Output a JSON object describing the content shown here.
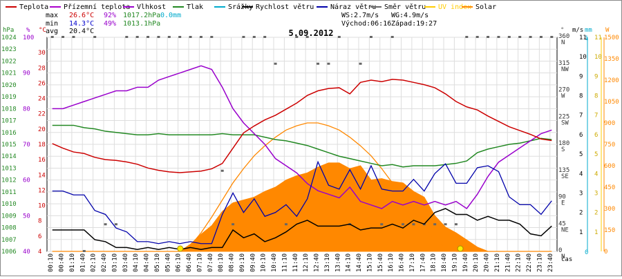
{
  "chart_data": {
    "type": "line",
    "title": "5.09.2012",
    "xlabel": "čas",
    "legend": [
      {
        "key": "teplota",
        "label": "Teplota",
        "color": "#cc0000"
      },
      {
        "key": "rosny",
        "label": "Přízemní teplota",
        "color": "#aa00cc"
      },
      {
        "key": "vlhkost",
        "label": "Vlhkost",
        "color": "#9900cc"
      },
      {
        "key": "tlak",
        "label": "Tlak",
        "color": "#228822"
      },
      {
        "key": "srazky",
        "label": "Srážky",
        "color": "#00aacc"
      },
      {
        "key": "rychlost",
        "label": "Rychlost větru",
        "color": "#000000"
      },
      {
        "key": "naraz",
        "label": "Náraz větru",
        "color": "#0000aa"
      },
      {
        "key": "smer",
        "label": "Směr větru",
        "color": "#666666"
      },
      {
        "key": "uv",
        "label": "UV index",
        "color": "#ffcc00"
      },
      {
        "key": "solar",
        "label": "Solar",
        "color": "#ff8800"
      }
    ],
    "stats": {
      "max_label": "max",
      "max_temp": "26.6°C",
      "max_hum": "92%",
      "max_press": "1017.2hPa",
      "max_rain": "0.0mm",
      "min_label": "min",
      "min_temp": "14.3°C",
      "min_hum": "49%",
      "min_press": "1013.1hPa",
      "avg_label": "avg",
      "avg_temp": "20.4°C"
    },
    "info": {
      "ws": "WS:2.7m/s",
      "wg": "WG:4.9m/s",
      "sunrise": "Východ:06:16",
      "sunset": "Západ:19:27"
    },
    "axes": {
      "hpa": {
        "unit": "hPa",
        "color": "#228822",
        "min": 1006,
        "max": 1024,
        "ticks": [
          1006,
          1007,
          1008,
          1009,
          1010,
          1011,
          1012,
          1013,
          1014,
          1015,
          1016,
          1017,
          1018,
          1019,
          1020,
          1021,
          1022,
          1023,
          1024
        ]
      },
      "pct": {
        "unit": "%",
        "color": "#9900cc",
        "min": 40,
        "max": 100,
        "ticks": [
          40,
          50,
          60,
          70,
          80,
          90,
          100
        ]
      },
      "temp": {
        "unit": "°C",
        "color": "#cc0000",
        "min": 4,
        "max": 32,
        "ticks": [
          4,
          6,
          8,
          10,
          12,
          14,
          16,
          18,
          20,
          22,
          24,
          26,
          28,
          30
        ]
      },
      "dir": {
        "unit": "°",
        "color": "#555555",
        "ticks": [
          {
            "v": 0,
            "l": "0",
            "c": "N"
          },
          {
            "v": 45,
            "l": "45",
            "c": "NE"
          },
          {
            "v": 90,
            "l": "90",
            "c": "E"
          },
          {
            "v": 135,
            "l": "135",
            "c": "SE"
          },
          {
            "v": 180,
            "l": "180",
            "c": "S"
          },
          {
            "v": 225,
            "l": "225",
            "c": "SW"
          },
          {
            "v": 270,
            "l": "270",
            "c": "W"
          },
          {
            "v": 315,
            "l": "315",
            "c": "NW"
          },
          {
            "v": 360,
            "l": "360",
            "c": "N"
          }
        ]
      },
      "ms": {
        "unit": "m/s",
        "color": "#000000",
        "min": 0,
        "max": 11,
        "ticks": [
          1,
          2,
          3,
          4,
          5,
          6,
          7,
          8,
          9,
          10,
          11
        ]
      },
      "mm": {
        "unit": "mm",
        "color": "#00aacc",
        "ticks": [
          "0",
          "1"
        ]
      },
      "uv": {
        "color": "#ccaa00",
        "min": 0,
        "max": 11,
        "ticks": [
          1,
          2,
          3,
          4,
          5,
          6,
          7,
          8,
          9,
          10,
          11
        ]
      },
      "wm2": {
        "unit": "W",
        "color": "#ff8800",
        "min": 0,
        "max": 1500,
        "ticks": [
          0,
          150,
          300,
          450,
          600,
          750,
          900,
          1050,
          1200,
          1350,
          1500
        ]
      }
    },
    "x_hours": [
      0,
      0.5,
      1,
      1.5,
      2,
      2.5,
      3,
      3.5,
      4,
      4.5,
      5,
      5.5,
      6,
      6.5,
      7,
      7.5,
      8,
      8.5,
      9,
      9.5,
      10,
      10.5,
      11,
      11.5,
      12,
      12.5,
      13,
      13.5,
      14,
      14.5,
      15,
      15.5,
      16,
      16.5,
      17,
      17.5,
      18,
      18.5,
      19,
      19.5,
      20,
      20.5,
      21,
      21.5,
      22,
      22.5,
      23,
      23.5
    ],
    "x_tick_labels": [
      "00:10",
      "00:40",
      "01:10",
      "01:40",
      "02:10",
      "02:40",
      "03:10",
      "03:40",
      "04:10",
      "04:40",
      "05:10",
      "05:40",
      "06:10",
      "06:40",
      "07:10",
      "07:40",
      "08:10",
      "08:40",
      "09:10",
      "09:40",
      "10:10",
      "10:40",
      "11:10",
      "11:40",
      "12:10",
      "12:40",
      "13:10",
      "13:40",
      "14:10",
      "14:40",
      "15:10",
      "15:40",
      "16:10",
      "16:40",
      "17:10",
      "17:40",
      "18:10",
      "18:40",
      "19:10",
      "19:40",
      "20:10",
      "20:40",
      "21:10",
      "21:40",
      "22:10",
      "22:40",
      "23:10",
      "23:40"
    ],
    "series": {
      "teplota": [
        18.1,
        17.5,
        17.0,
        16.8,
        16.3,
        16.0,
        15.9,
        15.7,
        15.4,
        14.9,
        14.6,
        14.4,
        14.3,
        14.4,
        14.5,
        14.8,
        15.5,
        17.5,
        19.5,
        20.4,
        21.2,
        21.8,
        22.6,
        23.4,
        24.4,
        25.0,
        25.3,
        25.4,
        24.6,
        26.1,
        26.4,
        26.2,
        26.5,
        26.4,
        26.1,
        25.8,
        25.4,
        24.6,
        23.6,
        22.9,
        22.5,
        21.7,
        21.0,
        20.3,
        19.8,
        19.3,
        18.7,
        18.5
      ],
      "tlak": [
        1016.6,
        1016.6,
        1016.6,
        1016.4,
        1016.3,
        1016.1,
        1016.0,
        1015.9,
        1015.8,
        1015.8,
        1015.9,
        1015.8,
        1015.8,
        1015.8,
        1015.8,
        1015.8,
        1015.9,
        1015.8,
        1015.8,
        1015.8,
        1015.6,
        1015.4,
        1015.3,
        1015.1,
        1014.9,
        1014.6,
        1014.3,
        1014.0,
        1013.8,
        1013.6,
        1013.4,
        1013.2,
        1013.3,
        1013.1,
        1013.2,
        1013.2,
        1013.2,
        1013.3,
        1013.4,
        1013.6,
        1014.3,
        1014.6,
        1014.8,
        1015.0,
        1015.1,
        1015.3,
        1015.5,
        1015.4
      ],
      "vlhkost": [
        80,
        80,
        81,
        82,
        83,
        84,
        85,
        85,
        86,
        86,
        88,
        89,
        90,
        91,
        92,
        91,
        86,
        80,
        76,
        73,
        70,
        66,
        64,
        62,
        59,
        57,
        56,
        55,
        58,
        54,
        53,
        52,
        54,
        53,
        54,
        53,
        54,
        53,
        54,
        52,
        56,
        61,
        65,
        67,
        69,
        71,
        73,
        74
      ],
      "naraz": [
        3.1,
        3.1,
        2.9,
        2.9,
        2.1,
        1.9,
        1.2,
        1.0,
        0.5,
        0.5,
        0.4,
        0.5,
        0.4,
        0.5,
        0.4,
        0.4,
        1.9,
        3.0,
        2.0,
        2.7,
        1.8,
        2.0,
        2.4,
        1.8,
        2.7,
        4.6,
        3.4,
        3.2,
        4.2,
        3.2,
        4.4,
        3.2,
        3.1,
        3.1,
        3.7,
        3.1,
        4.0,
        4.5,
        3.5,
        3.5,
        4.3,
        4.4,
        4.1,
        2.8,
        2.4,
        2.4,
        1.9,
        2.6
      ],
      "rychlost": [
        1.1,
        1.1,
        1.1,
        1.1,
        0.6,
        0.5,
        0.2,
        0.2,
        0.1,
        0.2,
        0.1,
        0.2,
        0.1,
        0.2,
        0.1,
        0.2,
        0.2,
        1.1,
        0.7,
        0.9,
        0.5,
        0.7,
        1.0,
        1.4,
        1.6,
        1.3,
        1.3,
        1.3,
        1.4,
        1.1,
        1.2,
        1.2,
        1.4,
        1.2,
        1.6,
        1.4,
        2.0,
        2.2,
        1.9,
        1.9,
        1.6,
        1.8,
        1.6,
        1.6,
        1.4,
        0.9,
        0.8,
        1.3
      ],
      "solar": [
        0,
        0,
        0,
        0,
        0,
        0,
        0,
        0,
        0,
        0,
        0,
        0,
        0,
        50,
        120,
        180,
        280,
        340,
        360,
        380,
        420,
        450,
        500,
        530,
        550,
        590,
        620,
        620,
        580,
        600,
        500,
        510,
        490,
        480,
        420,
        380,
        250,
        170,
        130,
        80,
        30,
        0,
        0,
        0,
        0,
        0,
        0,
        0
      ],
      "solar_theoretical": [
        0,
        0,
        0,
        0,
        0,
        0,
        0,
        0,
        0,
        0,
        0,
        0,
        0,
        40,
        130,
        240,
        360,
        480,
        580,
        670,
        740,
        800,
        850,
        880,
        900,
        900,
        880,
        850,
        800,
        740,
        670,
        580,
        480,
        380,
        280,
        180,
        80,
        20,
        0,
        0,
        0,
        0,
        0,
        0,
        0,
        0,
        0,
        0
      ],
      "smer": [
        360,
        360,
        360,
        0,
        360,
        45,
        45,
        360,
        360,
        360,
        360,
        360,
        360,
        360,
        360,
        360,
        135,
        45,
        360,
        360,
        360,
        315,
        45,
        360,
        360,
        315,
        315,
        360,
        45,
        315,
        360,
        45,
        360,
        45,
        45,
        45,
        45,
        45,
        45,
        360,
        360,
        360,
        360,
        360,
        360,
        360,
        360,
        360
      ]
    },
    "sun_markers": [
      {
        "hour": 6.27,
        "label": "sunrise"
      },
      {
        "hour": 19.45,
        "label": "sunset"
      }
    ]
  }
}
